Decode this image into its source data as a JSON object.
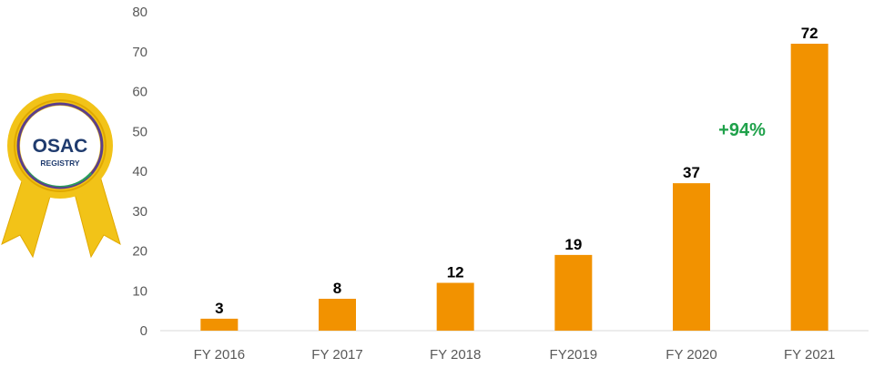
{
  "badge": {
    "line1": "OSAC",
    "line2": "REGISTRY",
    "colors": {
      "gold": "#f2c318",
      "gold_dark": "#e0a800",
      "navy": "#1f3b6e"
    }
  },
  "chart_data": {
    "type": "bar",
    "categories": [
      "FY 2016",
      "FY 2017",
      "FY 2018",
      "FY2019",
      "FY 2020",
      "FY 2021"
    ],
    "values": [
      3,
      8,
      12,
      19,
      37,
      72
    ],
    "data_labels": [
      "3",
      "8",
      "12",
      "19",
      "37",
      "72"
    ],
    "ylim": [
      0,
      80
    ],
    "yticks": [
      "0",
      "10",
      "20",
      "30",
      "40",
      "50",
      "60",
      "70",
      "80"
    ],
    "grid": false,
    "bar_color": "#f29200",
    "annotation": {
      "text": "+94%",
      "color": "#1fa14a"
    }
  }
}
